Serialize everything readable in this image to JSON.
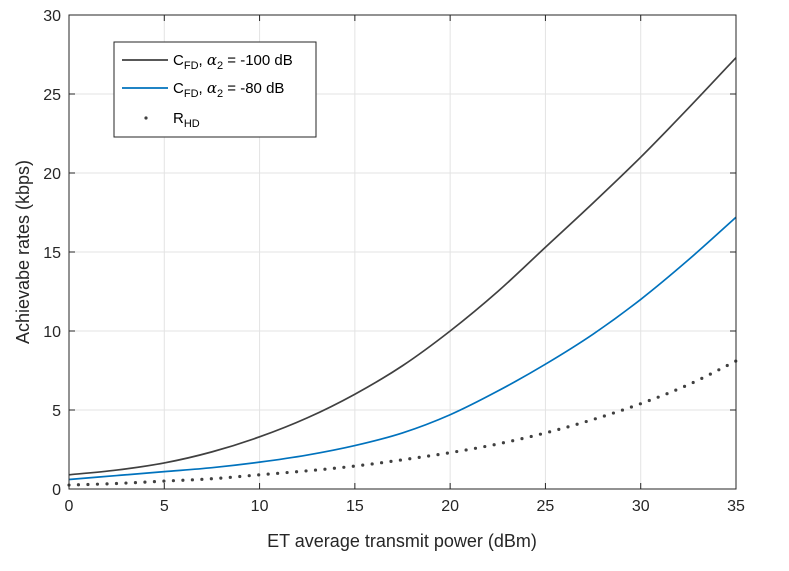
{
  "chart_data": {
    "type": "line",
    "title": "",
    "xlabel": "ET average transmit power (dBm)",
    "ylabel": "Achievabe rates (kbps)",
    "xlim": [
      0,
      35
    ],
    "ylim": [
      0,
      30
    ],
    "xticks": [
      0,
      5,
      10,
      15,
      20,
      25,
      30,
      35
    ],
    "yticks": [
      0,
      5,
      10,
      15,
      20,
      25,
      30
    ],
    "grid": true,
    "legend_position": "top-left",
    "x": [
      0,
      2.5,
      5,
      7.5,
      10,
      12.5,
      15,
      17.5,
      20,
      22.5,
      25,
      27.5,
      30,
      32.5,
      35
    ],
    "series": [
      {
        "name": "C_FD, α2 = -100 dB",
        "legend": {
          "main": "C",
          "sub": "FD",
          "sep": ", ",
          "alpha": "α",
          "alpha_sub": "2",
          "rest": " = -100 dB"
        },
        "style": "solid",
        "color": "#404040",
        "values": [
          0.9,
          1.2,
          1.65,
          2.35,
          3.3,
          4.5,
          6.0,
          7.8,
          10.0,
          12.5,
          15.3,
          18.1,
          21.0,
          24.1,
          27.3
        ]
      },
      {
        "name": "C_FD, α2 = -80 dB",
        "legend": {
          "main": "C",
          "sub": "FD",
          "sep": ", ",
          "alpha": "α",
          "alpha_sub": "2",
          "rest": " = -80 dB"
        },
        "style": "solid",
        "color": "#0072BD",
        "values": [
          0.6,
          0.85,
          1.1,
          1.35,
          1.7,
          2.15,
          2.75,
          3.55,
          4.7,
          6.2,
          7.9,
          9.8,
          12.0,
          14.5,
          17.2
        ]
      },
      {
        "name": "R_HD",
        "legend": {
          "main": "R",
          "sub": "HD"
        },
        "style": "dotted",
        "color": "#404040",
        "values": [
          0.25,
          0.35,
          0.5,
          0.65,
          0.9,
          1.15,
          1.45,
          1.85,
          2.3,
          2.85,
          3.55,
          4.4,
          5.4,
          6.6,
          8.1
        ]
      }
    ]
  }
}
